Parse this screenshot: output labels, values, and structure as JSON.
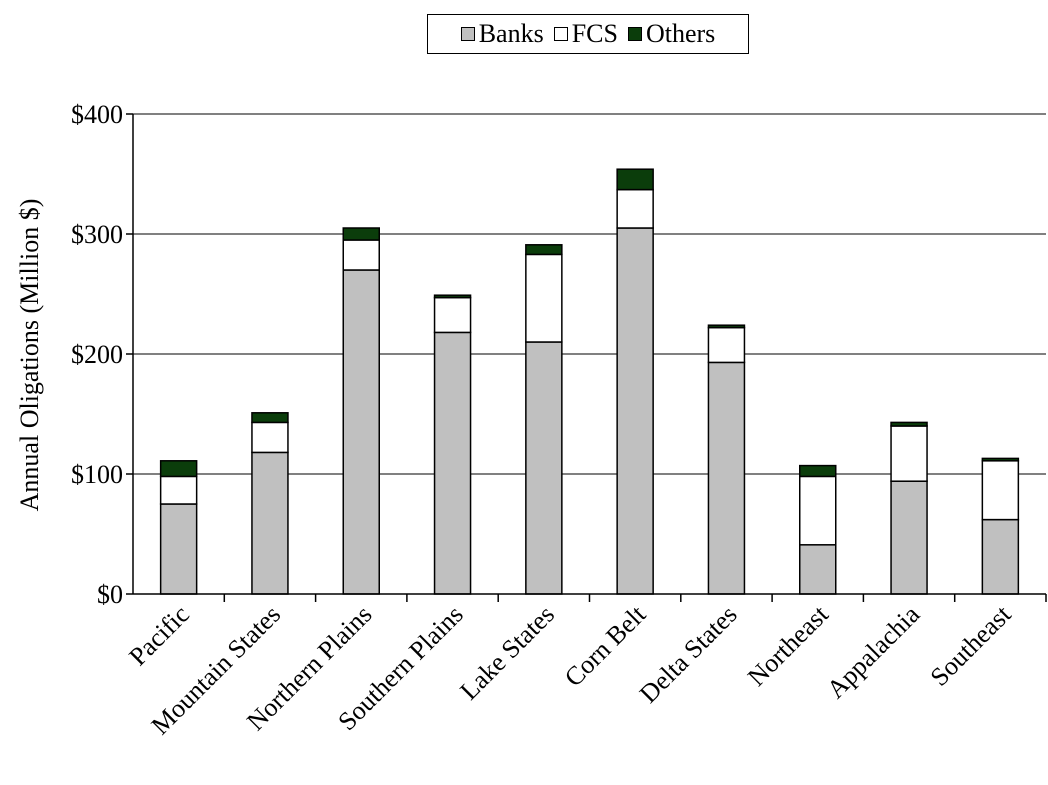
{
  "chart_data": {
    "type": "bar",
    "stacked": true,
    "title": "",
    "xlabel": "",
    "ylabel": "Annual Oligations (Million $)",
    "ylim": [
      0,
      400
    ],
    "yticks": [
      0,
      100,
      200,
      300,
      400
    ],
    "ytick_labels": [
      "$0",
      "$100",
      "$200",
      "$300",
      "$400"
    ],
    "grid": true,
    "legend_position": "top-center",
    "categories": [
      "Pacific",
      "Mountain States",
      "Northern Plains",
      "Southern Plains",
      "Lake States",
      "Corn Belt",
      "Delta States",
      "Northeast",
      "Appalachia",
      "Southeast"
    ],
    "series": [
      {
        "name": "Banks",
        "color": "#c0c0c0",
        "values": [
          75,
          118,
          270,
          218,
          210,
          305,
          193,
          41,
          94,
          62
        ]
      },
      {
        "name": "FCS",
        "color": "#ffffff",
        "values": [
          23,
          25,
          25,
          29,
          73,
          32,
          29,
          57,
          46,
          49
        ]
      },
      {
        "name": "Others",
        "color": "#0b3d0b",
        "values": [
          13,
          8,
          10,
          2,
          8,
          17,
          2,
          9,
          3,
          2
        ]
      }
    ]
  }
}
